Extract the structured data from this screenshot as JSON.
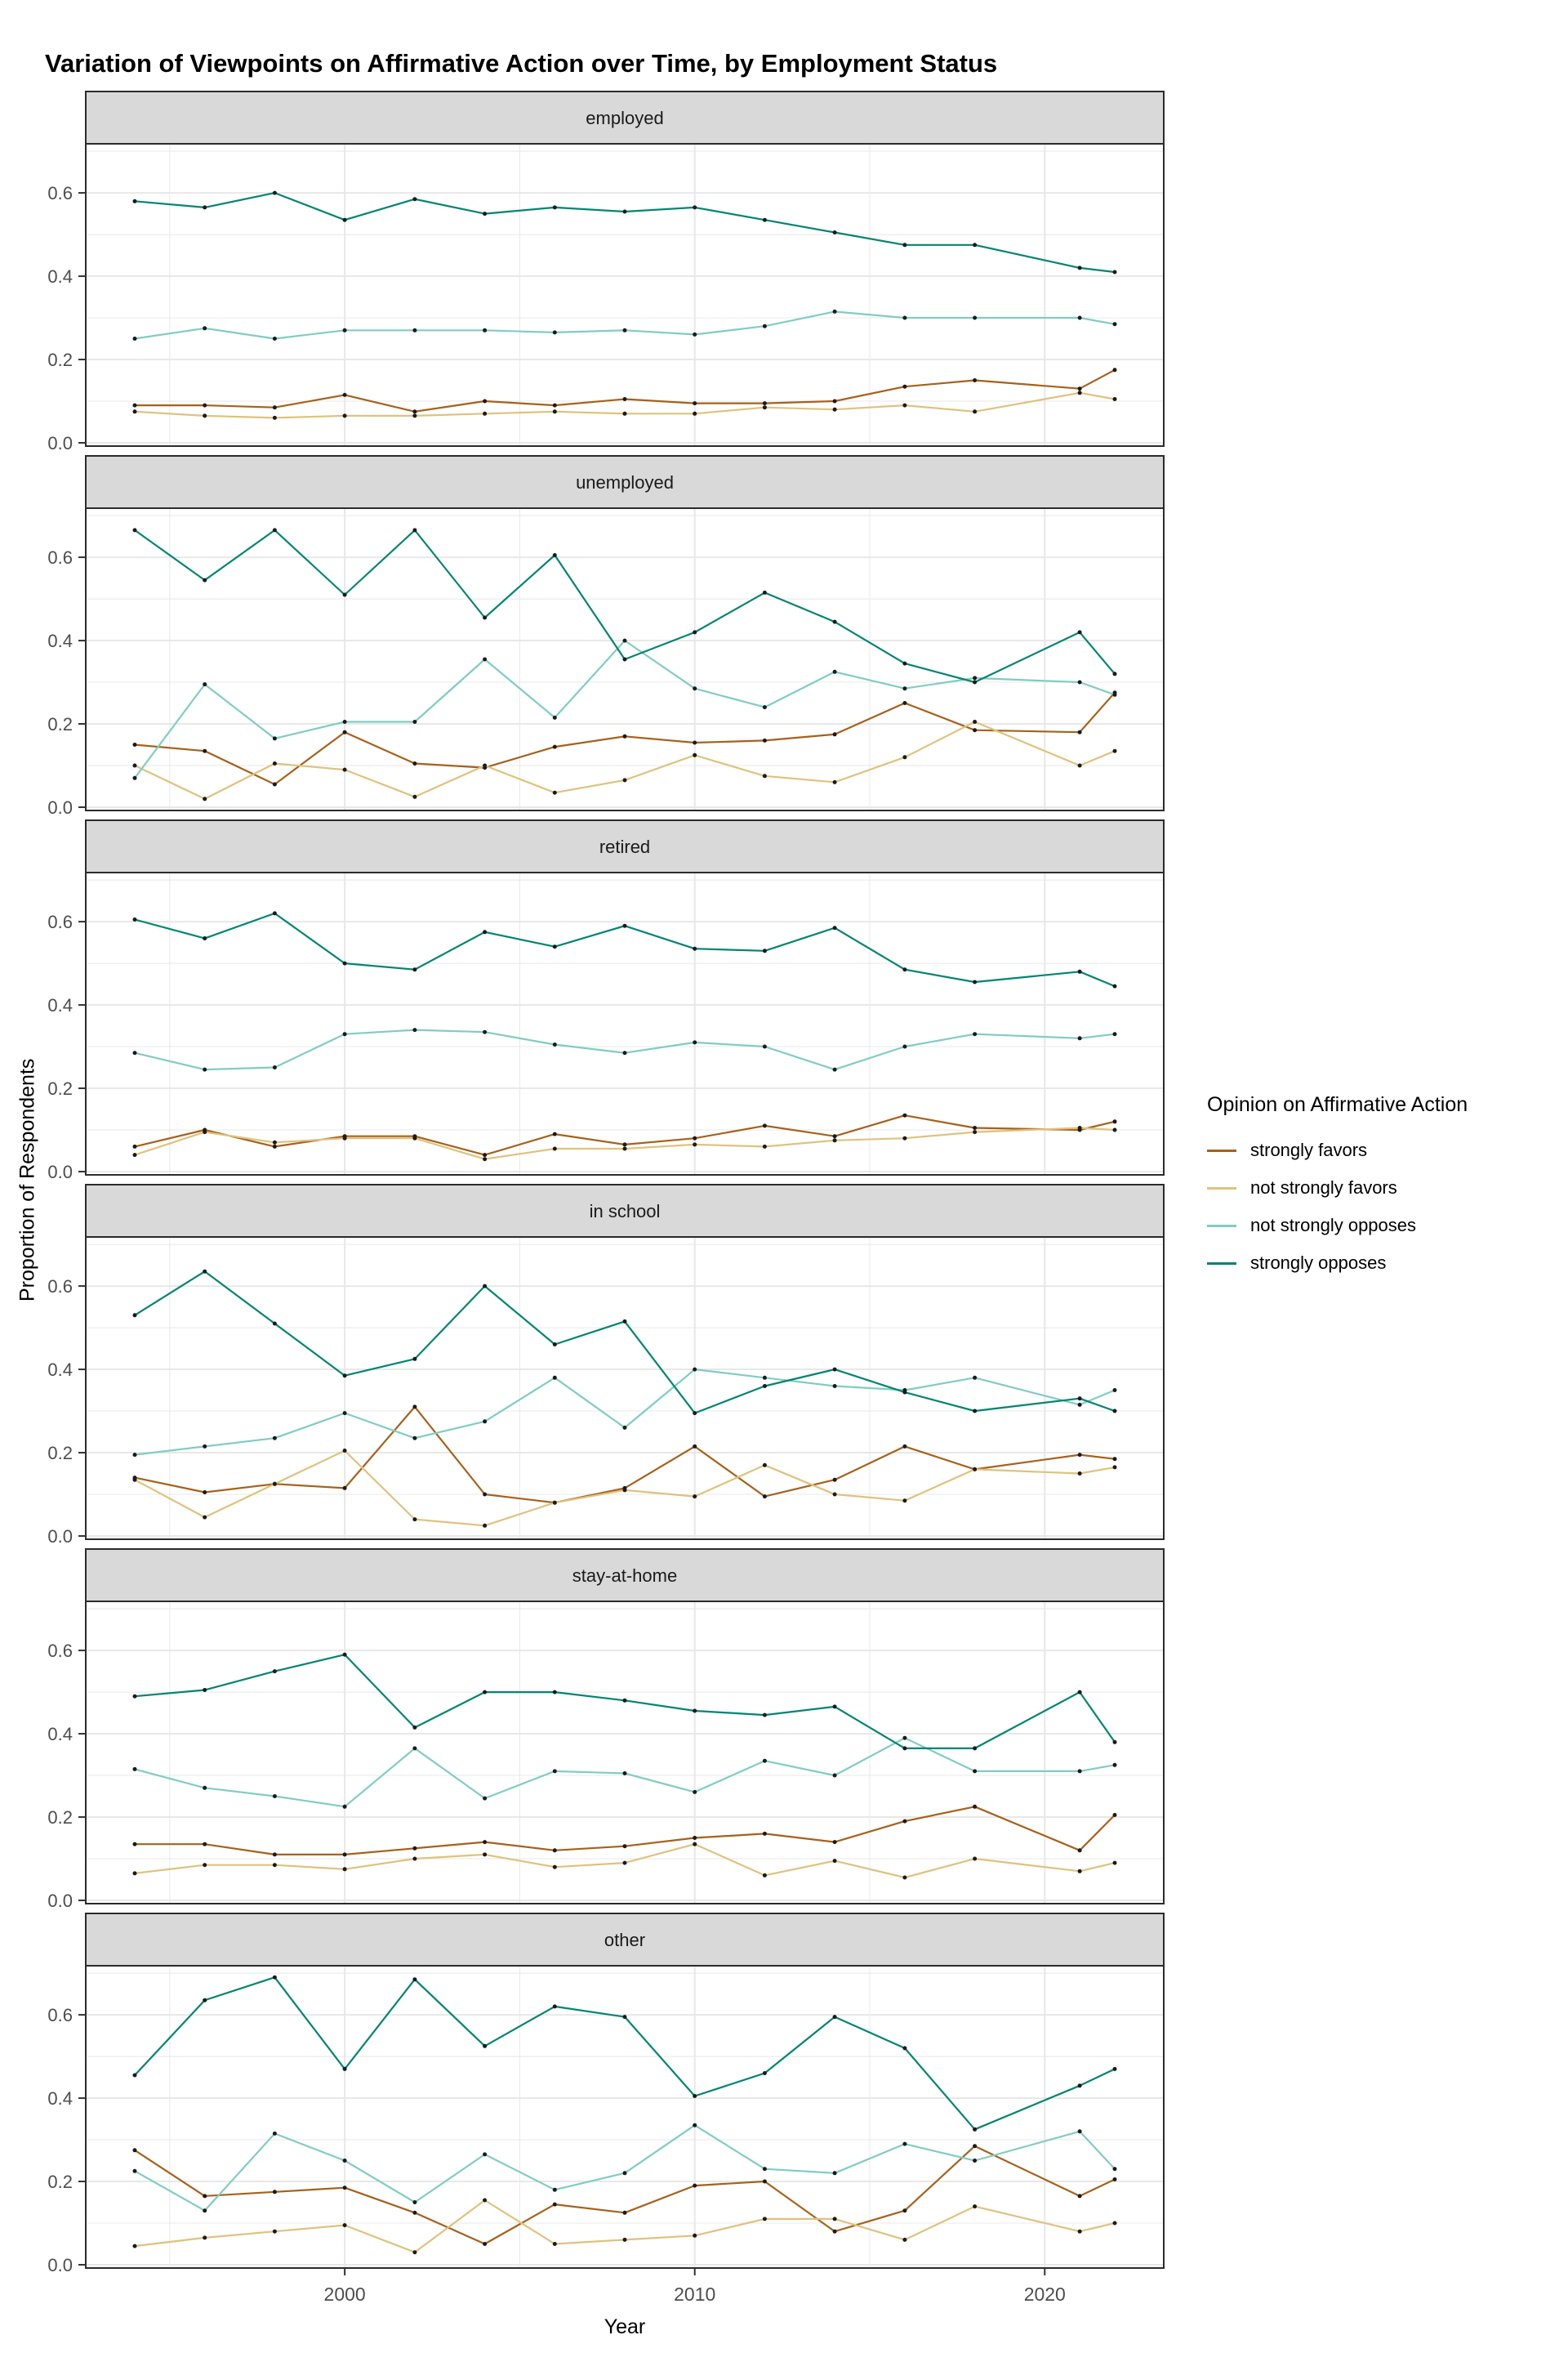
{
  "title": "Variation of Viewpoints on Affirmative Action over Time, by Employment Status",
  "axes": {
    "x_label": "Year",
    "y_label": "Proportion of Respondents",
    "x_tick_labels": [
      "2000",
      "2010",
      "2020"
    ],
    "y_tick_labels": [
      "0.0",
      "0.2",
      "0.4",
      "0.6"
    ]
  },
  "legend": {
    "title": "Opinion on Affirmative Action",
    "position": "right"
  },
  "colors": {
    "strongly_favors": "#A6611A",
    "not_strongly_favors": "#DFC27D",
    "not_strongly_opposes": "#80CDC1",
    "strongly_opposes": "#018571",
    "marker": "#1A1A1A",
    "strip_fill": "#D9D9D9",
    "panel_border": "#2B2B2B",
    "gridline": "#E8E8E8",
    "tick_label": "#4D4D4D"
  },
  "chart_data": {
    "type": "line",
    "title": "Variation of Viewpoints on Affirmative Action over Time, by Employment Status",
    "xlabel": "Year",
    "ylabel": "Proportion of Respondents",
    "grid": true,
    "legend_position": "right",
    "x": [
      1994,
      1996,
      1998,
      2000,
      2002,
      2004,
      2006,
      2008,
      2010,
      2012,
      2014,
      2016,
      2018,
      2021,
      2022
    ],
    "x_range": [
      1992.6,
      2023.4
    ],
    "y_range": [
      0,
      0.71
    ],
    "x_major": [
      2000,
      2010,
      2020
    ],
    "x_minor": [
      1995,
      2005,
      2015
    ],
    "y_major": [
      0,
      0.2,
      0.4,
      0.6
    ],
    "y_minor": [
      0.1,
      0.3,
      0.5,
      0.7
    ],
    "series_meta": [
      {
        "name": "strongly favors",
        "color": "#A6611A"
      },
      {
        "name": "not strongly favors",
        "color": "#DFC27D"
      },
      {
        "name": "not strongly opposes",
        "color": "#80CDC1"
      },
      {
        "name": "strongly opposes",
        "color": "#018571"
      }
    ],
    "facets": [
      {
        "label": "employed",
        "series": {
          "strongly favors": [
            0.09,
            0.09,
            0.085,
            0.115,
            0.075,
            0.1,
            0.09,
            0.105,
            0.095,
            0.095,
            0.1,
            0.135,
            0.15,
            0.13,
            0.175
          ],
          "not strongly favors": [
            0.075,
            0.065,
            0.06,
            0.065,
            0.065,
            0.07,
            0.075,
            0.07,
            0.07,
            0.085,
            0.08,
            0.09,
            0.075,
            0.12,
            0.105
          ],
          "not strongly opposes": [
            0.25,
            0.275,
            0.25,
            0.27,
            0.27,
            0.27,
            0.265,
            0.27,
            0.26,
            0.28,
            0.315,
            0.3,
            0.3,
            0.3,
            0.285
          ],
          "strongly opposes": [
            0.58,
            0.565,
            0.6,
            0.535,
            0.585,
            0.55,
            0.565,
            0.555,
            0.565,
            0.535,
            0.505,
            0.475,
            0.475,
            0.42,
            0.41
          ]
        }
      },
      {
        "label": "unemployed",
        "series": {
          "strongly favors": [
            0.15,
            0.135,
            0.055,
            0.18,
            0.105,
            0.095,
            0.145,
            0.17,
            0.155,
            0.16,
            0.175,
            0.25,
            0.185,
            0.18,
            0.275
          ],
          "not strongly favors": [
            0.1,
            0.02,
            0.105,
            0.09,
            0.025,
            0.1,
            0.035,
            0.065,
            0.125,
            0.075,
            0.06,
            0.12,
            0.205,
            0.1,
            0.135
          ],
          "not strongly opposes": [
            0.07,
            0.295,
            0.165,
            0.205,
            0.205,
            0.355,
            0.215,
            0.4,
            0.285,
            0.24,
            0.325,
            0.285,
            0.31,
            0.3,
            0.27
          ],
          "strongly opposes": [
            0.665,
            0.545,
            0.665,
            0.51,
            0.665,
            0.455,
            0.605,
            0.355,
            0.42,
            0.515,
            0.445,
            0.345,
            0.3,
            0.42,
            0.32
          ]
        }
      },
      {
        "label": "retired",
        "series": {
          "strongly favors": [
            0.06,
            0.1,
            0.06,
            0.085,
            0.085,
            0.04,
            0.09,
            0.065,
            0.08,
            0.11,
            0.085,
            0.135,
            0.105,
            0.1,
            0.12
          ],
          "not strongly favors": [
            0.04,
            0.095,
            0.07,
            0.08,
            0.08,
            0.03,
            0.055,
            0.055,
            0.065,
            0.06,
            0.075,
            0.08,
            0.095,
            0.105,
            0.1
          ],
          "not strongly opposes": [
            0.285,
            0.245,
            0.25,
            0.33,
            0.34,
            0.335,
            0.305,
            0.285,
            0.31,
            0.3,
            0.245,
            0.3,
            0.33,
            0.32,
            0.33
          ],
          "strongly opposes": [
            0.605,
            0.56,
            0.62,
            0.5,
            0.485,
            0.575,
            0.54,
            0.59,
            0.535,
            0.53,
            0.585,
            0.485,
            0.455,
            0.48,
            0.445
          ]
        }
      },
      {
        "label": "in school",
        "series": {
          "strongly favors": [
            0.14,
            0.105,
            0.125,
            0.115,
            0.31,
            0.1,
            0.08,
            0.115,
            0.215,
            0.095,
            0.135,
            0.215,
            0.16,
            0.195,
            0.185
          ],
          "not strongly favors": [
            0.135,
            0.045,
            0.125,
            0.205,
            0.04,
            0.025,
            0.08,
            0.11,
            0.095,
            0.17,
            0.1,
            0.085,
            0.16,
            0.15,
            0.165
          ],
          "not strongly opposes": [
            0.195,
            0.215,
            0.235,
            0.295,
            0.235,
            0.275,
            0.38,
            0.26,
            0.4,
            0.38,
            0.36,
            0.35,
            0.38,
            0.315,
            0.35
          ],
          "strongly opposes": [
            0.53,
            0.635,
            0.51,
            0.385,
            0.425,
            0.6,
            0.46,
            0.515,
            0.295,
            0.36,
            0.4,
            0.345,
            0.3,
            0.33,
            0.3
          ]
        }
      },
      {
        "label": "stay-at-home",
        "series": {
          "strongly favors": [
            0.135,
            0.135,
            0.11,
            0.11,
            0.125,
            0.14,
            0.12,
            0.13,
            0.15,
            0.16,
            0.14,
            0.19,
            0.225,
            0.12,
            0.205
          ],
          "not strongly favors": [
            0.065,
            0.085,
            0.085,
            0.075,
            0.1,
            0.11,
            0.08,
            0.09,
            0.135,
            0.06,
            0.095,
            0.055,
            0.1,
            0.07,
            0.09
          ],
          "not strongly opposes": [
            0.315,
            0.27,
            0.25,
            0.225,
            0.365,
            0.245,
            0.31,
            0.305,
            0.26,
            0.335,
            0.3,
            0.39,
            0.31,
            0.31,
            0.325
          ],
          "strongly opposes": [
            0.49,
            0.505,
            0.55,
            0.59,
            0.415,
            0.5,
            0.5,
            0.48,
            0.455,
            0.445,
            0.465,
            0.365,
            0.365,
            0.5,
            0.38
          ]
        }
      },
      {
        "label": "other",
        "series": {
          "strongly favors": [
            0.275,
            0.165,
            0.175,
            0.185,
            0.125,
            0.05,
            0.145,
            0.125,
            0.19,
            0.2,
            0.08,
            0.13,
            0.285,
            0.165,
            0.205
          ],
          "not strongly favors": [
            0.045,
            0.065,
            0.08,
            0.095,
            0.03,
            0.155,
            0.05,
            0.06,
            0.07,
            0.11,
            0.11,
            0.06,
            0.14,
            0.08,
            0.1
          ],
          "not strongly opposes": [
            0.225,
            0.13,
            0.315,
            0.25,
            0.15,
            0.265,
            0.18,
            0.22,
            0.335,
            0.23,
            0.22,
            0.29,
            0.25,
            0.32,
            0.23
          ],
          "strongly opposes": [
            0.455,
            0.635,
            0.69,
            0.47,
            0.685,
            0.525,
            0.62,
            0.595,
            0.405,
            0.46,
            0.595,
            0.52,
            0.325,
            0.43,
            0.47
          ]
        }
      }
    ]
  }
}
